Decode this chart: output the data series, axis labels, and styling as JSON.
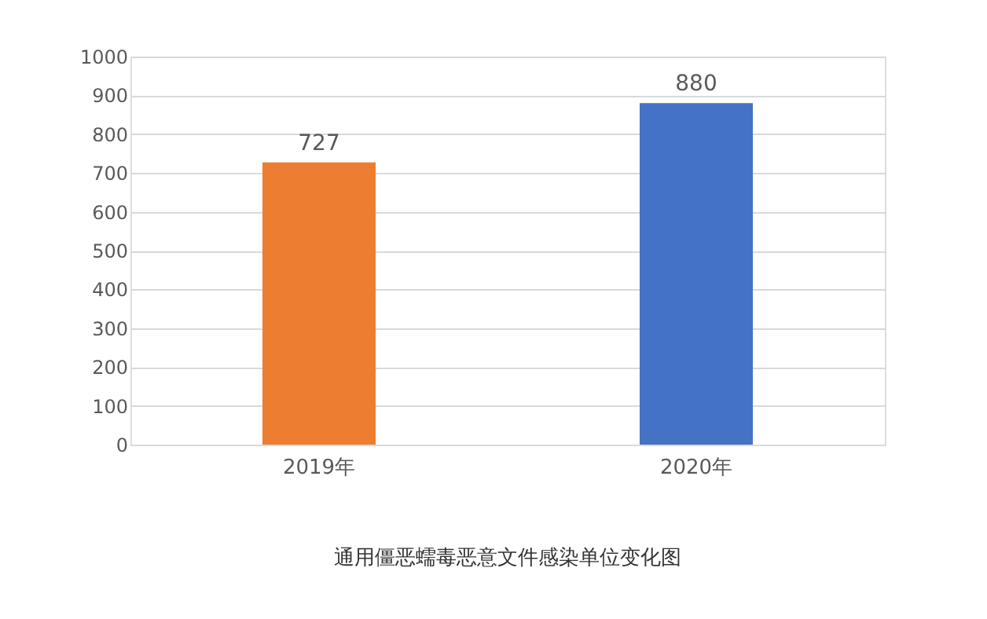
{
  "chart_data": {
    "type": "bar",
    "categories": [
      "2019年",
      "2020年"
    ],
    "values": [
      727,
      880
    ],
    "colors": [
      "#ed7d31",
      "#4472c4"
    ],
    "ylim": [
      0,
      1000
    ],
    "yticks": [
      0,
      100,
      200,
      300,
      400,
      500,
      600,
      700,
      800,
      900,
      1000
    ],
    "grid": "y",
    "data_labels": true,
    "annotations": [
      "通用僵恶蠕毒恶意文件感染单位变化图"
    ]
  }
}
